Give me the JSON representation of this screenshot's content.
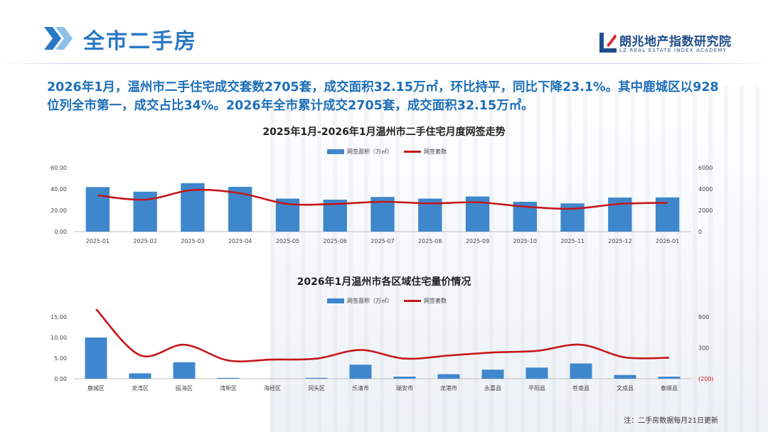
{
  "header": {
    "title": "全市二手房",
    "logo_name": "朗兆地产指数研究院",
    "logo_sub": "LZ REAL ESTATE INDEX ACADEMY"
  },
  "summary": "2026年1月，温州市二手住宅成交套数2705套，成交面积32.15万㎡，环比持平，同比下降23.1%。其中鹿城区以928位列全市第一，成交占比34%。2026年全市累计成交2705套，成交面积32.15万㎡。",
  "footnote": "注：二手房数据每月21日更新",
  "colors": {
    "bar": "#3f87cc",
    "line": "#c4171b",
    "title": "#2a79c4",
    "summary": "#1e6fb8"
  },
  "chart_data": [
    {
      "type": "bar+line",
      "title": "2025年1月-2026年1月温州市二手住宅月度网签走势",
      "categories": [
        "2025-01",
        "2025-02",
        "2025-03",
        "2025-04",
        "2025-05",
        "2025-06",
        "2025-07",
        "2025-08",
        "2025-09",
        "2025-10",
        "2025-11",
        "2025-12",
        "2026-01"
      ],
      "series": [
        {
          "name": "网签面积（万㎡）",
          "type": "bar",
          "axis": "left",
          "values": [
            41.8,
            37.5,
            45.5,
            42.0,
            31.0,
            30.0,
            32.5,
            31.0,
            33.0,
            28.0,
            26.5,
            32.0,
            32.15
          ]
        },
        {
          "name": "网签套数",
          "type": "line",
          "axis": "right",
          "values": [
            3400,
            3000,
            3900,
            3600,
            2600,
            2600,
            2800,
            2650,
            2750,
            2350,
            2150,
            2600,
            2705
          ]
        }
      ],
      "left_axis": {
        "ticks": [
          "0.00",
          "20.00",
          "40.00",
          "60.00"
        ],
        "range": [
          0,
          60
        ]
      },
      "right_axis": {
        "ticks": [
          "0",
          "2000",
          "4000",
          "6000"
        ],
        "range": [
          0,
          6000
        ]
      },
      "legend": "top-center",
      "grid": false
    },
    {
      "type": "bar+line",
      "title": "2026年1月温州市各区域住宅量价情况",
      "categories": [
        "鹿城区",
        "龙湾区",
        "瓯海区",
        "湾新区",
        "海经区",
        "洞头区",
        "乐清市",
        "瑞安市",
        "龙港市",
        "永嘉县",
        "平阳县",
        "苍南县",
        "文成县",
        "泰顺县"
      ],
      "series": [
        {
          "name": "网签面积（万㎡）",
          "type": "bar",
          "axis": "left",
          "values": [
            10.0,
            1.3,
            4.0,
            0.2,
            0.0,
            0.2,
            3.4,
            0.5,
            1.1,
            2.2,
            2.7,
            3.7,
            0.9,
            0.5
          ]
        },
        {
          "name": "网签套数",
          "type": "line",
          "axis": "right",
          "values": [
            928,
            180,
            350,
            95,
            110,
            125,
            265,
            125,
            175,
            225,
            250,
            350,
            145,
            140
          ]
        }
      ],
      "left_axis": {
        "ticks": [
          "0.00",
          "5.00",
          "10.00",
          "15.00"
        ],
        "range": [
          0,
          15
        ]
      },
      "right_axis": {
        "ticks": [
          "(200)",
          "300",
          "800"
        ],
        "range": [
          -200,
          800
        ]
      },
      "legend": "top-center",
      "grid": false
    }
  ]
}
